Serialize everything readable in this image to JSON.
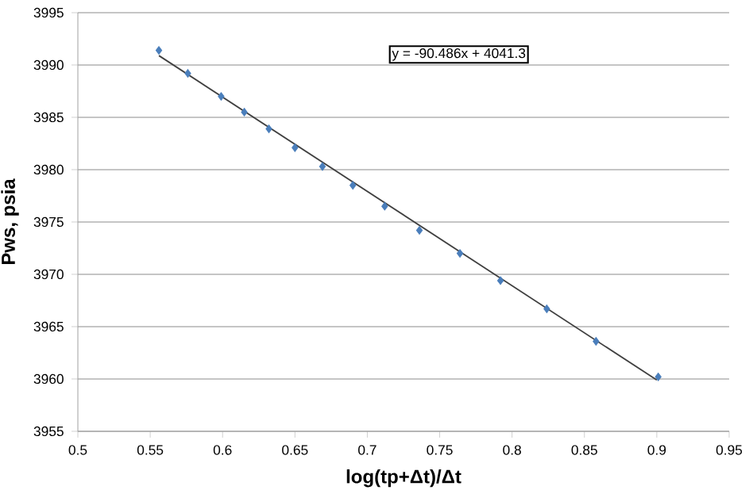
{
  "chart_data": {
    "type": "scatter",
    "xlabel": "log(tp+Δt)/Δt",
    "ylabel": "Pws, psia",
    "xlim": [
      0.5,
      0.95
    ],
    "xticks": [
      0.5,
      0.55,
      0.6,
      0.65,
      0.7,
      0.75,
      0.8,
      0.85,
      0.9,
      0.95
    ],
    "ylim": [
      3955,
      3995
    ],
    "yticks": [
      3955,
      3960,
      3965,
      3970,
      3975,
      3980,
      3985,
      3990,
      3995
    ],
    "grid": "y",
    "marker": "diamond",
    "annotations": [
      "y = -90.486x + 4041.3"
    ],
    "series": [
      {
        "color": "#4a7ebb",
        "x": [
          0.556,
          0.576,
          0.599,
          0.615,
          0.632,
          0.65,
          0.669,
          0.69,
          0.712,
          0.736,
          0.764,
          0.792,
          0.824,
          0.858,
          0.901
        ],
        "values": [
          3991.4,
          3989.2,
          3987.0,
          3985.5,
          3983.9,
          3982.1,
          3980.3,
          3978.5,
          3976.5,
          3974.2,
          3972.0,
          3969.4,
          3966.7,
          3963.6,
          3960.2
        ]
      },
      {
        "type": "line",
        "marker": "none",
        "color": "#404040",
        "x": [
          0.556,
          0.9
        ],
        "values": [
          3990.9,
          3959.9
        ]
      }
    ]
  }
}
